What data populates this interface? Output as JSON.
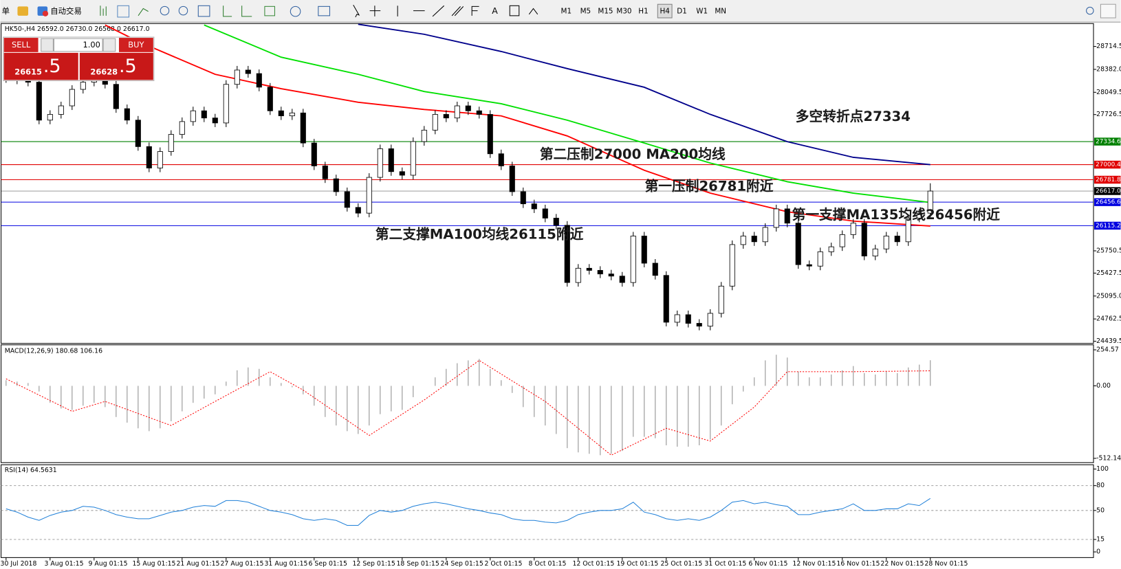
{
  "toolbar": {
    "menu_fragment": "单",
    "auto_trading": "自动交易",
    "timeframes": [
      "M1",
      "M5",
      "M15",
      "M30",
      "H1",
      "H4",
      "D1",
      "W1",
      "MN"
    ],
    "active_timeframe": "H4"
  },
  "trade_panel": {
    "sell": "SELL",
    "buy": "BUY",
    "volume": "1.00",
    "sell_price": "26615",
    "sell_price_pips": ".5",
    "buy_price": "26628",
    "buy_price_pips": ".5"
  },
  "chart_data": [
    {
      "type": "candlestick",
      "title": "HK50-,H4 26592.0 26730.0 26568.0 26617.0",
      "categories": [
        "30 Jul 2018",
        null,
        null,
        null,
        "3 Aug 01:15",
        null,
        null,
        null,
        "9 Aug 01:15",
        null,
        null,
        null,
        "15 Aug 01:15",
        null,
        null,
        null,
        "21 Aug 01:15",
        null,
        null,
        null,
        "27 Aug 01:15",
        null,
        null,
        null,
        "31 Aug 01:15",
        null,
        null,
        null,
        "6 Sep 01:15",
        null,
        null,
        null,
        "12 Sep 01:15",
        null,
        null,
        null,
        "18 Sep 01:15",
        null,
        null,
        null,
        "24 Sep 01:15",
        null,
        null,
        null,
        "2 Oct 01:15",
        null,
        null,
        null,
        "8 Oct 01:15",
        null,
        null,
        null,
        "12 Oct 01:15",
        null,
        null,
        null,
        "19 Oct 01:15",
        null,
        null,
        null,
        "25 Oct 01:15",
        null,
        null,
        null,
        "31 Oct 01:15",
        null,
        null,
        null,
        "6 Nov 01:15",
        null,
        null,
        null,
        "12 Nov 01:15",
        null,
        null,
        null,
        "16 Nov 01:15",
        null,
        null,
        null,
        "22 Nov 01:15",
        null,
        null,
        null,
        "28 Nov 01:15"
      ],
      "open": [
        28300,
        28247,
        28227,
        28196,
        27646,
        27729,
        27853,
        28092,
        28196,
        28227,
        28165,
        27812,
        27646,
        27262,
        26951,
        27190,
        27439,
        27625,
        27781,
        27677,
        27605,
        28165,
        28372,
        28321,
        28124,
        27781,
        27708,
        27750,
        27314,
        26982,
        26795,
        26608,
        26380,
        26297,
        26816,
        27231,
        26899,
        26847,
        27335,
        27501,
        27729,
        27677,
        27853,
        27781,
        27729,
        27158,
        26982,
        26608,
        26432,
        26359,
        26225,
        26121,
        25291,
        25498,
        25467,
        25415,
        25384,
        25291,
        25965,
        25571,
        25394,
        24715,
        24824,
        24699,
        24658,
        24844,
        25239,
        25841,
        25965,
        25882,
        26090,
        26359,
        26152,
        25550,
        25529,
        25737,
        25809,
        25986,
        26152,
        25675,
        25778,
        25965,
        25882,
        26225,
        26297
      ],
      "high": [
        28360,
        28307,
        28287,
        28256,
        27789,
        27913,
        28152,
        28256,
        28287,
        28287,
        28225,
        27872,
        27706,
        27322,
        27250,
        27499,
        27685,
        27841,
        27841,
        27737,
        28225,
        28432,
        28432,
        28381,
        28184,
        27841,
        27810,
        27810,
        27374,
        27042,
        26855,
        26668,
        26440,
        26876,
        27291,
        27291,
        26959,
        27395,
        27561,
        27789,
        27789,
        27913,
        27913,
        27841,
        27789,
        27218,
        27042,
        26668,
        26492,
        26419,
        26285,
        26181,
        25558,
        25558,
        25527,
        25475,
        25444,
        26025,
        26025,
        25631,
        25454,
        24884,
        24884,
        24759,
        24904,
        25299,
        25901,
        26025,
        26025,
        26150,
        26419,
        26419,
        26212,
        25610,
        25797,
        25869,
        26046,
        26212,
        26212,
        25838,
        26025,
        26025,
        26285,
        26357,
        26730
      ],
      "low": [
        28187,
        28167,
        28136,
        27586,
        27586,
        27669,
        27793,
        28032,
        28136,
        28105,
        27752,
        27586,
        27202,
        26891,
        26891,
        27130,
        27379,
        27565,
        27617,
        27545,
        27545,
        28105,
        28261,
        28064,
        27721,
        27648,
        27648,
        27254,
        26922,
        26735,
        26548,
        26320,
        26237,
        26237,
        26756,
        26839,
        26787,
        26787,
        27275,
        27441,
        27617,
        27617,
        27721,
        27669,
        27098,
        26922,
        26548,
        26372,
        26299,
        26165,
        26061,
        25231,
        25231,
        25407,
        25355,
        25324,
        25231,
        25231,
        25511,
        25334,
        24655,
        24655,
        24639,
        24598,
        24598,
        24784,
        25179,
        25781,
        25822,
        25822,
        26030,
        26092,
        25490,
        25469,
        25469,
        25677,
        25749,
        25926,
        25615,
        25615,
        25718,
        25822,
        25822,
        26165,
        26237
      ],
      "close": [
        28247,
        28227,
        28196,
        27646,
        27729,
        27853,
        28092,
        28196,
        28227,
        28165,
        27812,
        27646,
        27262,
        26951,
        27190,
        27439,
        27625,
        27781,
        27677,
        27605,
        28165,
        28372,
        28321,
        28124,
        27781,
        27708,
        27750,
        27314,
        26982,
        26795,
        26608,
        26380,
        26297,
        26816,
        27231,
        26899,
        26847,
        27335,
        27501,
        27729,
        27677,
        27853,
        27781,
        27729,
        27158,
        26982,
        26608,
        26432,
        26359,
        26225,
        26121,
        25291,
        25498,
        25467,
        25415,
        25384,
        25291,
        25965,
        25571,
        25394,
        24715,
        24824,
        24699,
        24658,
        24844,
        25239,
        25841,
        25965,
        25882,
        26090,
        26359,
        26152,
        25550,
        25529,
        25737,
        25809,
        25986,
        26152,
        25675,
        25778,
        25965,
        25882,
        26225,
        26297,
        26617
      ],
      "up_color": "#ffffff",
      "down_color": "#000000",
      "ylim": [
        24408,
        29036
      ],
      "yticks": [
        28714.5,
        {
          "value": 28382,
          "label": "28382.0"
        },
        28049.5,
        27726.5,
        25750.5,
        25427.5,
        {
          "value": 25095,
          "label": "25095.0"
        },
        24762.5,
        24439.5
      ],
      "moving_averages": [
        {
          "color": "#ff0000",
          "x": [
            9,
            12,
            19,
            25,
            32,
            38,
            45,
            51,
            58,
            64,
            71,
            77,
            84
          ],
          "values": [
            29026,
            28787,
            28310,
            28102,
            27905,
            27801,
            27708,
            27417,
            26919,
            26587,
            26317,
            26182,
            26110
          ]
        },
        {
          "color": "#00e000",
          "x": [
            18,
            25,
            32,
            38,
            45,
            51,
            58,
            64,
            71,
            77,
            84
          ],
          "values": [
            29026,
            28559,
            28310,
            28061,
            27884,
            27646,
            27314,
            27023,
            26753,
            26587,
            26452
          ]
        },
        {
          "color": "#00008b",
          "x": [
            32,
            38,
            45,
            51,
            58,
            64,
            71,
            77,
            84
          ],
          "values": [
            29036,
            28891,
            28642,
            28393,
            28123,
            27729,
            27334,
            27106,
            27000
          ]
        }
      ],
      "levels": [
        {
          "value": 27334.6,
          "color": "#008000"
        },
        {
          "value": 27000.4,
          "color": "#e00000"
        },
        {
          "value": 26781.8,
          "color": "#e00000"
        },
        {
          "value": 26617,
          "label": "26617.0",
          "color": "#000000"
        },
        {
          "value": 26456.6,
          "color": "#0000e0"
        },
        {
          "value": 26115.2,
          "color": "#0000e0"
        }
      ],
      "annotations": [
        "多空转折点27334",
        "第二压制27000 MA200均线",
        "第一压制26781附近",
        "第一支撑MA135均线26456附近",
        "第二支撑MA100均线26115附近"
      ]
    },
    {
      "type": "macd",
      "title": "MACD(12,26,9) 180.68 106.16",
      "values": [
        40,
        30,
        20,
        -40,
        -120,
        -160,
        -170,
        -140,
        -120,
        -150,
        -220,
        -260,
        -300,
        -320,
        -300,
        -250,
        -180,
        -120,
        -90,
        -60,
        30,
        110,
        130,
        120,
        60,
        20,
        -10,
        -60,
        -140,
        -220,
        -280,
        -320,
        -340,
        -280,
        -200,
        -180,
        -170,
        -80,
        0,
        60,
        120,
        160,
        180,
        190,
        120,
        40,
        -50,
        -150,
        -220,
        -280,
        -340,
        -440,
        -470,
        -480,
        -490,
        -480,
        -460,
        -360,
        -360,
        -370,
        -420,
        -430,
        -430,
        -420,
        -380,
        -280,
        -130,
        -40,
        60,
        180,
        220,
        200,
        100,
        60,
        60,
        80,
        110,
        140,
        90,
        80,
        100,
        90,
        130,
        150,
        181
      ],
      "color": "#a0a0a0",
      "signal": {
        "color": "#ff0000",
        "x": [
          0,
          6,
          9,
          15,
          19,
          24,
          27,
          33,
          38,
          43,
          49,
          55,
          60,
          64,
          68,
          71,
          77,
          84
        ],
        "values": [
          50,
          -180,
          -110,
          -280,
          -110,
          100,
          -30,
          -350,
          -100,
          180,
          -110,
          -490,
          -300,
          -390,
          -150,
          100,
          100,
          106
        ]
      },
      "ylim": [
        -542.4,
        284.8
      ],
      "yticks": [
        254.57,
        {
          "value": 0,
          "label": "0.00"
        },
        -512.14
      ]
    },
    {
      "type": "line",
      "title": "RSI(14) 64.5631",
      "values": [
        52,
        48,
        42,
        38,
        44,
        48,
        50,
        55,
        54,
        50,
        45,
        42,
        40,
        40,
        44,
        48,
        50,
        54,
        56,
        55,
        62,
        62,
        60,
        55,
        50,
        48,
        45,
        40,
        38,
        40,
        38,
        32,
        32,
        44,
        50,
        48,
        50,
        55,
        58,
        60,
        58,
        55,
        52,
        50,
        47,
        45,
        40,
        38,
        38,
        36,
        35,
        38,
        45,
        48,
        50,
        50,
        52,
        60,
        48,
        45,
        40,
        38,
        40,
        38,
        42,
        50,
        60,
        62,
        58,
        60,
        57,
        55,
        45,
        45,
        48,
        50,
        52,
        58,
        50,
        50,
        52,
        52,
        58,
        56,
        64.5631
      ],
      "color": "#1e7fd8",
      "ylim": [
        -6,
        104.3
      ],
      "yticks": [
        100,
        80,
        50,
        15,
        0
      ],
      "grid": "dashed"
    }
  ]
}
